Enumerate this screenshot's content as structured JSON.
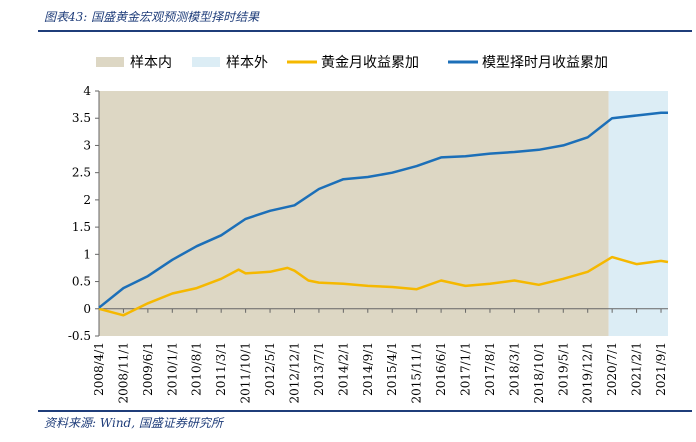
{
  "caption": "图表43: 国盛黄金宏观预测模型择时结果",
  "source": "资料来源: Wind, 国盛证券研究所",
  "colors": {
    "in_sample": "#ddd7c4",
    "out_sample": "#dcedf5",
    "gold": "#f5b800",
    "model": "#1c6fb8"
  },
  "chart_data": {
    "type": "line",
    "title": "",
    "xlabel": "",
    "ylabel": "",
    "ylim": [
      -0.5,
      4
    ],
    "yticks": [
      "4",
      "3.5",
      "3",
      "2.5",
      "2",
      "1.5",
      "1",
      "0.5",
      "0",
      "-0.5"
    ],
    "xticks": [
      "2008/4/1",
      "2008/11/1",
      "2009/6/1",
      "2010/1/1",
      "2010/8/1",
      "2011/3/1",
      "2011/10/1",
      "2012/5/1",
      "2012/12/1",
      "2013/7/1",
      "2014/2/1",
      "2014/9/1",
      "2015/4/1",
      "2015/11/1",
      "2016/6/1",
      "2017/1/1",
      "2017/8/1",
      "2018/3/1",
      "2018/10/1",
      "2019/5/1",
      "2019/12/1",
      "2020/7/1",
      "2021/2/1",
      "2021/9/1"
    ],
    "x_range": [
      "2008/4/1",
      "2021/11/1"
    ],
    "legend_position": "top",
    "legend": [
      "样本内",
      "样本外",
      "黄金月收益累加",
      "模型择时月收益累加"
    ],
    "regions": [
      {
        "name": "样本内",
        "from": "2008/4/1",
        "to": "2020/6/1"
      },
      {
        "name": "样本外",
        "from": "2020/6/1",
        "to": "2021/11/1"
      }
    ],
    "series": [
      {
        "name": "黄金月收益累加",
        "x": [
          "2008/4/1",
          "2008/11/1",
          "2009/6/1",
          "2010/1/1",
          "2010/8/1",
          "2011/3/1",
          "2011/8/1",
          "2011/10/1",
          "2012/5/1",
          "2012/10/1",
          "2012/12/1",
          "2013/4/1",
          "2013/7/1",
          "2014/2/1",
          "2014/9/1",
          "2015/4/1",
          "2015/11/1",
          "2016/6/1",
          "2017/1/1",
          "2017/8/1",
          "2018/3/1",
          "2018/10/1",
          "2019/5/1",
          "2019/12/1",
          "2020/7/1",
          "2021/2/1",
          "2021/9/1",
          "2021/11/1"
        ],
        "values": [
          0,
          -0.12,
          0.1,
          0.28,
          0.38,
          0.55,
          0.72,
          0.65,
          0.68,
          0.75,
          0.7,
          0.52,
          0.48,
          0.46,
          0.42,
          0.4,
          0.36,
          0.52,
          0.42,
          0.46,
          0.52,
          0.44,
          0.55,
          0.68,
          0.95,
          0.82,
          0.88,
          0.86
        ]
      },
      {
        "name": "模型择时月收益累加",
        "x": [
          "2008/4/1",
          "2008/11/1",
          "2009/6/1",
          "2010/1/1",
          "2010/8/1",
          "2011/3/1",
          "2011/10/1",
          "2012/5/1",
          "2012/12/1",
          "2013/7/1",
          "2014/2/1",
          "2014/9/1",
          "2015/4/1",
          "2015/11/1",
          "2016/6/1",
          "2017/1/1",
          "2017/8/1",
          "2018/3/1",
          "2018/10/1",
          "2019/5/1",
          "2019/12/1",
          "2020/7/1",
          "2021/2/1",
          "2021/9/1",
          "2021/11/1"
        ],
        "values": [
          0.02,
          0.38,
          0.6,
          0.9,
          1.15,
          1.35,
          1.65,
          1.8,
          1.9,
          2.2,
          2.38,
          2.42,
          2.5,
          2.62,
          2.78,
          2.8,
          2.85,
          2.88,
          2.92,
          3.0,
          3.15,
          3.5,
          3.55,
          3.6,
          3.6
        ]
      }
    ]
  }
}
